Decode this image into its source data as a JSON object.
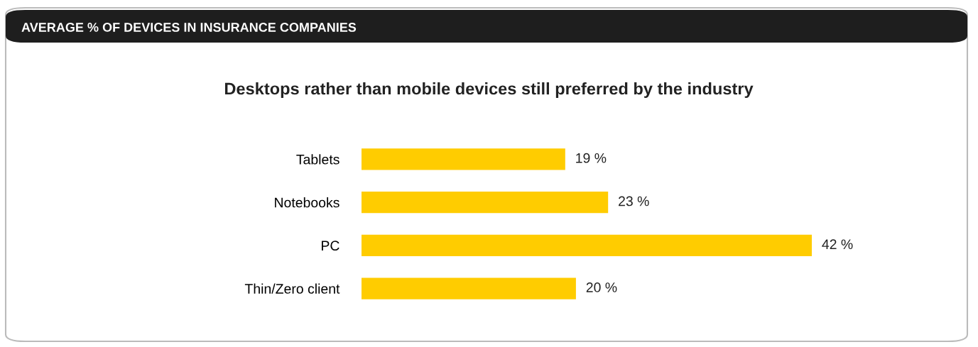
{
  "chart_data": {
    "type": "bar",
    "orientation": "horizontal",
    "title": "AVERAGE % OF DEVICES IN INSURANCE COMPANIES",
    "subtitle": "Desktops rather than mobile devices still preferred by the industry",
    "categories": [
      "Tablets",
      "Notebooks",
      "PC",
      "Thin/Zero client"
    ],
    "values": [
      19,
      23,
      42,
      20
    ],
    "color": "#ffcc00",
    "value_labels": [
      "19 %",
      "23 %",
      "42 %",
      "20 %"
    ],
    "tick_labels": "y",
    "grid": false,
    "legend": false
  }
}
